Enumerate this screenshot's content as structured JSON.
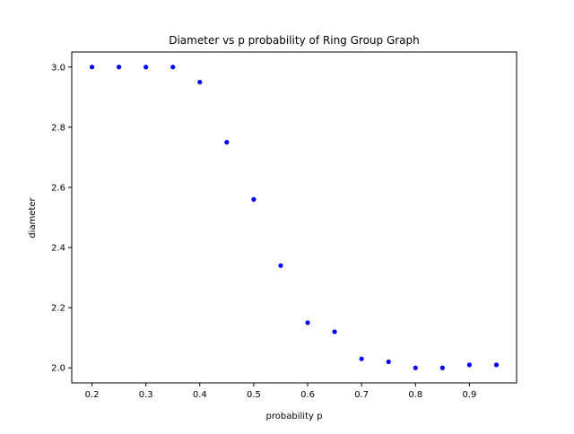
{
  "chart_data": {
    "type": "scatter",
    "title": "Diameter vs p probability of Ring Group Graph",
    "xlabel": "probability p",
    "ylabel": "diameter",
    "xlim": [
      0.1625,
      0.9875
    ],
    "ylim": [
      1.95,
      3.05
    ],
    "xticks": [
      0.2,
      0.3,
      0.4,
      0.5,
      0.6,
      0.7,
      0.8,
      0.9
    ],
    "xtick_labels": [
      "0.2",
      "0.3",
      "0.4",
      "0.5",
      "0.6",
      "0.7",
      "0.8",
      "0.9"
    ],
    "yticks": [
      2.0,
      2.2,
      2.4,
      2.6,
      2.8,
      3.0
    ],
    "ytick_labels": [
      "2.0",
      "2.2",
      "2.4",
      "2.6",
      "2.8",
      "3.0"
    ],
    "grid": false,
    "legend": "none",
    "marker_color": "#0000ff",
    "series": [
      {
        "x": [
          0.2,
          0.25,
          0.3,
          0.35,
          0.4,
          0.45,
          0.5,
          0.55,
          0.6,
          0.65,
          0.7,
          0.75,
          0.8,
          0.85,
          0.9,
          0.95
        ],
        "y": [
          3.0,
          3.0,
          3.0,
          3.0,
          2.95,
          2.75,
          2.56,
          2.34,
          2.15,
          2.12,
          2.03,
          2.02,
          2.0,
          2.0,
          2.01,
          2.01
        ]
      }
    ]
  }
}
